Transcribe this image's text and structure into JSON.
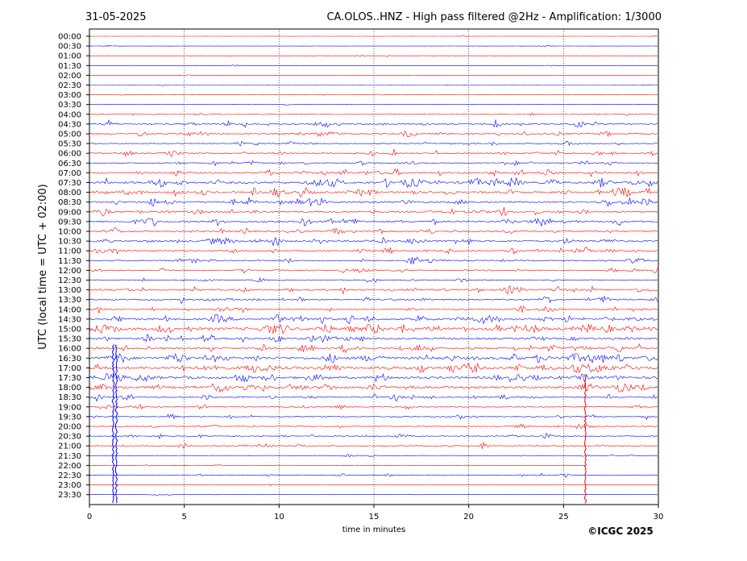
{
  "chart_data": {
    "type": "line",
    "date_label": "31-05-2025",
    "title": "CA.OLOS..HNZ - High pass filtered @2Hz - Amplification: 1/3000",
    "xlabel": "time in minutes",
    "ylabel": "UTC (local time = UTC + 02:00)",
    "xlim": [
      0,
      30
    ],
    "x_ticks": [
      "0",
      "5",
      "10",
      "15",
      "20",
      "25",
      "30"
    ],
    "x_tick_values": [
      0,
      5,
      10,
      15,
      20,
      25,
      30
    ],
    "grid": "vertical dotted lines every 5 minutes",
    "row_labels": [
      "00:00",
      "00:30",
      "01:00",
      "01:30",
      "02:00",
      "02:30",
      "03:00",
      "03:30",
      "04:00",
      "04:30",
      "05:00",
      "05:30",
      "06:00",
      "06:30",
      "07:00",
      "07:30",
      "08:00",
      "08:30",
      "09:00",
      "09:30",
      "10:00",
      "10:30",
      "11:00",
      "11:30",
      "12:00",
      "12:30",
      "13:00",
      "13:30",
      "14:00",
      "14:30",
      "15:00",
      "15:30",
      "16:00",
      "16:30",
      "17:00",
      "17:30",
      "18:00",
      "18:30",
      "19:00",
      "19:30",
      "20:00",
      "20:30",
      "21:00",
      "21:30",
      "22:00",
      "22:30",
      "23:00",
      "23:30"
    ],
    "series_colors": [
      "#ff0000",
      "#0000ff"
    ],
    "row_activity": [
      0.05,
      0.05,
      0.05,
      0.04,
      0.04,
      0.04,
      0.08,
      0.06,
      0.2,
      0.45,
      0.4,
      0.3,
      0.4,
      0.35,
      0.55,
      0.75,
      0.65,
      0.55,
      0.5,
      0.6,
      0.5,
      0.6,
      0.5,
      0.4,
      0.4,
      0.3,
      0.5,
      0.45,
      0.4,
      0.7,
      0.95,
      0.6,
      0.6,
      0.85,
      0.9,
      0.8,
      0.75,
      0.45,
      0.35,
      0.35,
      0.3,
      0.3,
      0.35,
      0.15,
      0.06,
      0.2,
      0.04,
      0.04
    ],
    "long_traces": [
      {
        "x_min": 1.25,
        "rows_from": "16:00",
        "rows_to": "23:30",
        "color": "#0000ff"
      },
      {
        "x_min": 1.42,
        "rows_from": "16:00",
        "rows_to": "23:30",
        "color": "#0000ff"
      },
      {
        "x_min": 26.15,
        "rows_from": "17:30",
        "rows_to": "23:30",
        "color": "#ff0000"
      }
    ],
    "trace_ends_min": {
      "22:00": 26.2
    }
  },
  "footer": {
    "copyright": "©ICGC 2025"
  }
}
